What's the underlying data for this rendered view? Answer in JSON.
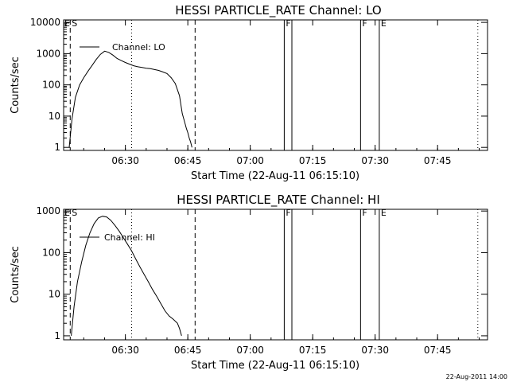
{
  "footer": {
    "timestamp": "22-Aug-2011 14:00"
  },
  "chart_data": [
    {
      "type": "line",
      "title": "HESSI PARTICLE_RATE Channel: LO",
      "xlabel": "Start Time (22-Aug-11 06:15:10)",
      "ylabel": "Counts/sec",
      "y_scale": "log",
      "xlim": [
        "06:15:10",
        "07:57:00"
      ],
      "ylim": [
        0.8,
        12000
      ],
      "x_ticks": [
        "06:30",
        "06:45",
        "07:00",
        "07:15",
        "07:30",
        "07:45"
      ],
      "y_ticks": [
        "1",
        "10",
        "100",
        "1000",
        "10000"
      ],
      "legend": {
        "position": "top-left",
        "entries": [
          "Channel: LO"
        ]
      },
      "series": [
        {
          "name": "Channel: LO",
          "x": [
            "06:16:30",
            "06:17:10",
            "06:18:00",
            "06:19:00",
            "06:20:00",
            "06:21:00",
            "06:22:00",
            "06:23:00",
            "06:24:00",
            "06:25:00",
            "06:26:00",
            "06:27:00",
            "06:28:00",
            "06:29:00",
            "06:30:00",
            "06:31:00",
            "06:32:00",
            "06:33:00",
            "06:34:00",
            "06:35:00",
            "06:36:00",
            "06:37:00",
            "06:38:00",
            "06:39:00",
            "06:40:00",
            "06:41:00",
            "06:42:00",
            "06:43:00",
            "06:43:40",
            "06:44:10",
            "06:44:40",
            "06:45:00",
            "06:45:20",
            "06:45:40",
            "06:46:00"
          ],
          "y": [
            1,
            8,
            40,
            100,
            170,
            270,
            420,
            650,
            950,
            1200,
            1100,
            900,
            700,
            600,
            520,
            460,
            410,
            380,
            360,
            340,
            330,
            310,
            290,
            260,
            230,
            170,
            110,
            45,
            12,
            7,
            4,
            3,
            2,
            1.5,
            1
          ]
        }
      ],
      "vertical_markers": [
        {
          "time": "06:16:45",
          "style": "dashed",
          "label": "S"
        },
        {
          "time": "06:31:30",
          "style": "dotted",
          "label": ""
        },
        {
          "time": "06:46:45",
          "style": "dashed",
          "label": ""
        },
        {
          "time": "07:08:10",
          "style": "solid",
          "label": "F"
        },
        {
          "time": "07:10:00",
          "style": "solid",
          "label": ""
        },
        {
          "time": "07:26:30",
          "style": "solid",
          "label": "F"
        },
        {
          "time": "07:31:00",
          "style": "solid",
          "label": "E"
        },
        {
          "time": "07:54:40",
          "style": "dotted",
          "label": ""
        }
      ],
      "edge_marker": "E"
    },
    {
      "type": "line",
      "title": "HESSI PARTICLE_RATE Channel: HI",
      "xlabel": "Start Time (22-Aug-11 06:15:10)",
      "ylabel": "Counts/sec",
      "y_scale": "log",
      "xlim": [
        "06:15:10",
        "07:57:00"
      ],
      "ylim": [
        0.8,
        1100
      ],
      "x_ticks": [
        "06:30",
        "06:45",
        "07:00",
        "07:15",
        "07:30",
        "07:45"
      ],
      "y_ticks": [
        "1",
        "10",
        "100",
        "1000"
      ],
      "legend": {
        "position": "top-left",
        "entries": [
          "Channel: HI"
        ]
      },
      "series": [
        {
          "name": "Channel: HI",
          "x": [
            "06:17:00",
            "06:17:40",
            "06:18:30",
            "06:19:30",
            "06:20:30",
            "06:21:30",
            "06:22:30",
            "06:23:30",
            "06:24:30",
            "06:25:30",
            "06:26:30",
            "06:27:30",
            "06:28:30",
            "06:29:30",
            "06:30:30",
            "06:31:30",
            "06:32:30",
            "06:33:30",
            "06:34:30",
            "06:35:30",
            "06:36:30",
            "06:37:30",
            "06:38:30",
            "06:39:30",
            "06:40:30",
            "06:41:30",
            "06:42:30",
            "06:43:00",
            "06:43:30"
          ],
          "y": [
            1,
            5,
            20,
            60,
            150,
            300,
            500,
            680,
            750,
            720,
            600,
            450,
            330,
            230,
            160,
            110,
            70,
            45,
            30,
            20,
            13,
            9,
            6,
            4,
            3,
            2.5,
            2,
            1.5,
            1
          ]
        }
      ],
      "vertical_markers": [
        {
          "time": "06:16:45",
          "style": "dashed",
          "label": "S"
        },
        {
          "time": "06:31:30",
          "style": "dotted",
          "label": ""
        },
        {
          "time": "06:46:45",
          "style": "dashed",
          "label": ""
        },
        {
          "time": "07:08:10",
          "style": "solid",
          "label": "F"
        },
        {
          "time": "07:10:00",
          "style": "solid",
          "label": ""
        },
        {
          "time": "07:26:30",
          "style": "solid",
          "label": "F"
        },
        {
          "time": "07:31:00",
          "style": "solid",
          "label": "E"
        },
        {
          "time": "07:54:40",
          "style": "dotted",
          "label": ""
        }
      ],
      "edge_marker": "E"
    }
  ]
}
